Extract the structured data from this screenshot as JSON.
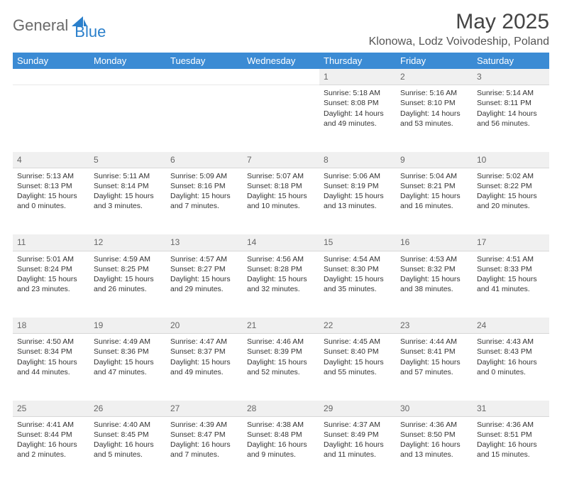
{
  "logo": {
    "text1": "General",
    "text2": "Blue",
    "icon_color": "#2a7fcb"
  },
  "title": "May 2025",
  "location": "Klonowa, Lodz Voivodeship, Poland",
  "colors": {
    "header_bg": "#3b8bd4",
    "header_fg": "#ffffff",
    "daynum_bg": "#f0f0f0",
    "daynum_fg": "#666666",
    "text": "#333333",
    "logo_gray": "#6a6a6a",
    "logo_blue": "#2a7fcb"
  },
  "weekdays": [
    "Sunday",
    "Monday",
    "Tuesday",
    "Wednesday",
    "Thursday",
    "Friday",
    "Saturday"
  ],
  "weeks": [
    [
      null,
      null,
      null,
      null,
      {
        "n": "1",
        "sr": "5:18 AM",
        "ss": "8:08 PM",
        "dl": "14 hours and 49 minutes."
      },
      {
        "n": "2",
        "sr": "5:16 AM",
        "ss": "8:10 PM",
        "dl": "14 hours and 53 minutes."
      },
      {
        "n": "3",
        "sr": "5:14 AM",
        "ss": "8:11 PM",
        "dl": "14 hours and 56 minutes."
      }
    ],
    [
      {
        "n": "4",
        "sr": "5:13 AM",
        "ss": "8:13 PM",
        "dl": "15 hours and 0 minutes."
      },
      {
        "n": "5",
        "sr": "5:11 AM",
        "ss": "8:14 PM",
        "dl": "15 hours and 3 minutes."
      },
      {
        "n": "6",
        "sr": "5:09 AM",
        "ss": "8:16 PM",
        "dl": "15 hours and 7 minutes."
      },
      {
        "n": "7",
        "sr": "5:07 AM",
        "ss": "8:18 PM",
        "dl": "15 hours and 10 minutes."
      },
      {
        "n": "8",
        "sr": "5:06 AM",
        "ss": "8:19 PM",
        "dl": "15 hours and 13 minutes."
      },
      {
        "n": "9",
        "sr": "5:04 AM",
        "ss": "8:21 PM",
        "dl": "15 hours and 16 minutes."
      },
      {
        "n": "10",
        "sr": "5:02 AM",
        "ss": "8:22 PM",
        "dl": "15 hours and 20 minutes."
      }
    ],
    [
      {
        "n": "11",
        "sr": "5:01 AM",
        "ss": "8:24 PM",
        "dl": "15 hours and 23 minutes."
      },
      {
        "n": "12",
        "sr": "4:59 AM",
        "ss": "8:25 PM",
        "dl": "15 hours and 26 minutes."
      },
      {
        "n": "13",
        "sr": "4:57 AM",
        "ss": "8:27 PM",
        "dl": "15 hours and 29 minutes."
      },
      {
        "n": "14",
        "sr": "4:56 AM",
        "ss": "8:28 PM",
        "dl": "15 hours and 32 minutes."
      },
      {
        "n": "15",
        "sr": "4:54 AM",
        "ss": "8:30 PM",
        "dl": "15 hours and 35 minutes."
      },
      {
        "n": "16",
        "sr": "4:53 AM",
        "ss": "8:32 PM",
        "dl": "15 hours and 38 minutes."
      },
      {
        "n": "17",
        "sr": "4:51 AM",
        "ss": "8:33 PM",
        "dl": "15 hours and 41 minutes."
      }
    ],
    [
      {
        "n": "18",
        "sr": "4:50 AM",
        "ss": "8:34 PM",
        "dl": "15 hours and 44 minutes."
      },
      {
        "n": "19",
        "sr": "4:49 AM",
        "ss": "8:36 PM",
        "dl": "15 hours and 47 minutes."
      },
      {
        "n": "20",
        "sr": "4:47 AM",
        "ss": "8:37 PM",
        "dl": "15 hours and 49 minutes."
      },
      {
        "n": "21",
        "sr": "4:46 AM",
        "ss": "8:39 PM",
        "dl": "15 hours and 52 minutes."
      },
      {
        "n": "22",
        "sr": "4:45 AM",
        "ss": "8:40 PM",
        "dl": "15 hours and 55 minutes."
      },
      {
        "n": "23",
        "sr": "4:44 AM",
        "ss": "8:41 PM",
        "dl": "15 hours and 57 minutes."
      },
      {
        "n": "24",
        "sr": "4:43 AM",
        "ss": "8:43 PM",
        "dl": "16 hours and 0 minutes."
      }
    ],
    [
      {
        "n": "25",
        "sr": "4:41 AM",
        "ss": "8:44 PM",
        "dl": "16 hours and 2 minutes."
      },
      {
        "n": "26",
        "sr": "4:40 AM",
        "ss": "8:45 PM",
        "dl": "16 hours and 5 minutes."
      },
      {
        "n": "27",
        "sr": "4:39 AM",
        "ss": "8:47 PM",
        "dl": "16 hours and 7 minutes."
      },
      {
        "n": "28",
        "sr": "4:38 AM",
        "ss": "8:48 PM",
        "dl": "16 hours and 9 minutes."
      },
      {
        "n": "29",
        "sr": "4:37 AM",
        "ss": "8:49 PM",
        "dl": "16 hours and 11 minutes."
      },
      {
        "n": "30",
        "sr": "4:36 AM",
        "ss": "8:50 PM",
        "dl": "16 hours and 13 minutes."
      },
      {
        "n": "31",
        "sr": "4:36 AM",
        "ss": "8:51 PM",
        "dl": "16 hours and 15 minutes."
      }
    ]
  ],
  "labels": {
    "sunrise": "Sunrise:",
    "sunset": "Sunset:",
    "daylight": "Daylight:"
  }
}
